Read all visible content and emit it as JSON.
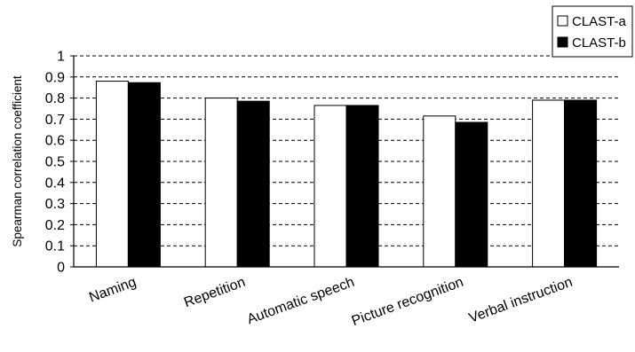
{
  "chart_data": {
    "type": "bar",
    "title": "",
    "xlabel": "",
    "ylabel": "Spearman correlation coefficient",
    "ylim": [
      0,
      1
    ],
    "yticks": [
      0,
      0.1,
      0.2,
      0.3,
      0.4,
      0.5,
      0.6,
      0.7,
      0.8,
      0.9,
      1
    ],
    "grid": "horizontal dashed",
    "legend_position": "top-right",
    "categories": [
      "Naming",
      "Repetition",
      "Automatic speech",
      "Picture recognition",
      "Verbal instruction"
    ],
    "series": [
      {
        "name": "CLAST-a",
        "values": [
          0.88,
          0.8,
          0.765,
          0.715,
          0.79
        ],
        "color": "#ffffff"
      },
      {
        "name": "CLAST-b",
        "values": [
          0.873,
          0.785,
          0.765,
          0.685,
          0.79
        ],
        "color": "#000000"
      }
    ]
  }
}
